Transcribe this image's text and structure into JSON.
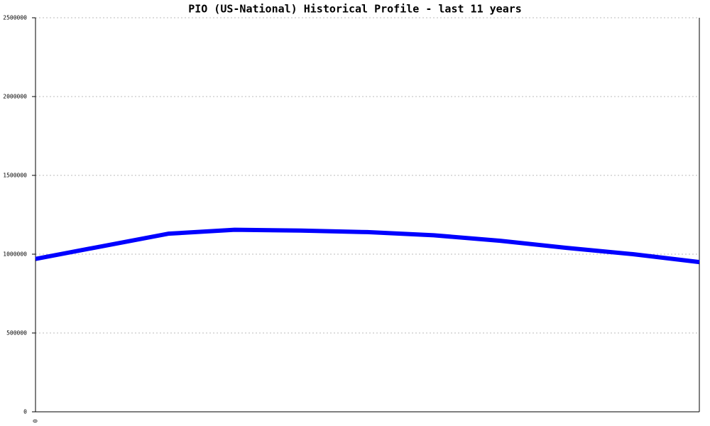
{
  "chart_data": {
    "type": "line",
    "title": "PIO (US-National) Historical Profile - last 11 years",
    "categories": [
      "0",
      null,
      null,
      null,
      null,
      null,
      null,
      null,
      null,
      null,
      null
    ],
    "series": [
      {
        "color": "#0000ff",
        "values": [
          970000,
          1050000,
          1130000,
          1155000,
          1150000,
          1140000,
          1120000,
          1085000,
          1040000,
          1000000,
          950000
        ]
      }
    ],
    "ylim": [
      0,
      2500000
    ],
    "yticks": [
      0,
      500000,
      1000000,
      1500000,
      2000000,
      2500000
    ],
    "grid": true
  }
}
